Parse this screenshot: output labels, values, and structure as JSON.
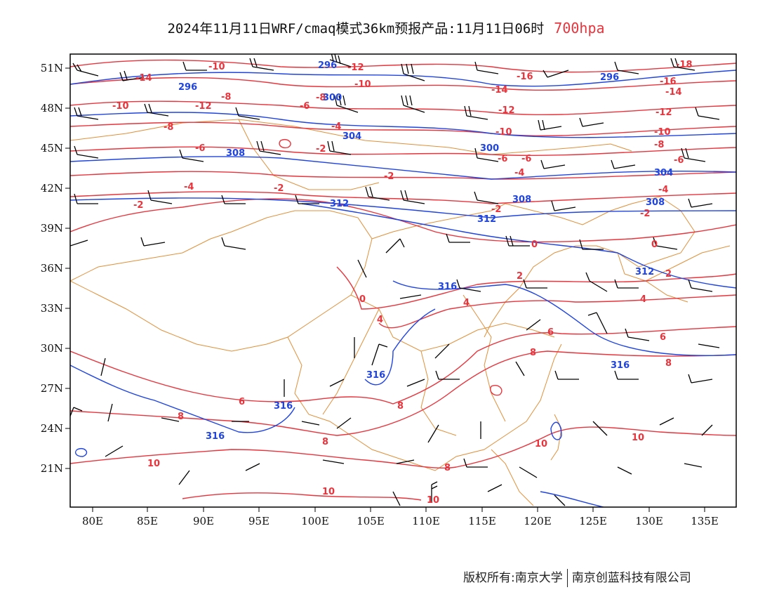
{
  "title": {
    "text": "2024年11月11日WRF/cmaq模式36km预报产品:11月11日06时",
    "level": "700hpa"
  },
  "map": {
    "lon_ticks": [
      "80E",
      "85E",
      "90E",
      "95E",
      "100E",
      "105E",
      "110E",
      "115E",
      "120E",
      "125E",
      "130E",
      "135E"
    ],
    "lat_ticks": [
      "51N",
      "48N",
      "45N",
      "42N",
      "39N",
      "36N",
      "33N",
      "30N",
      "27N",
      "24N",
      "21N"
    ],
    "colors": {
      "temperature": "#e8343c",
      "height": "#1f44e0",
      "boundary": "#e0903a",
      "wind": "#000000"
    },
    "temperature_labels": [
      "-14",
      "-10",
      "-12",
      "-8",
      "-10",
      "-6",
      "-4",
      "-2",
      "0",
      "2",
      "4",
      "6",
      "8",
      "10",
      "-16",
      "-18"
    ],
    "height_labels": [
      "296",
      "300",
      "304",
      "308",
      "312",
      "316"
    ]
  },
  "footer": {
    "left": "版权所有:南京大学",
    "right": "南京创蓝科技有限公司"
  }
}
